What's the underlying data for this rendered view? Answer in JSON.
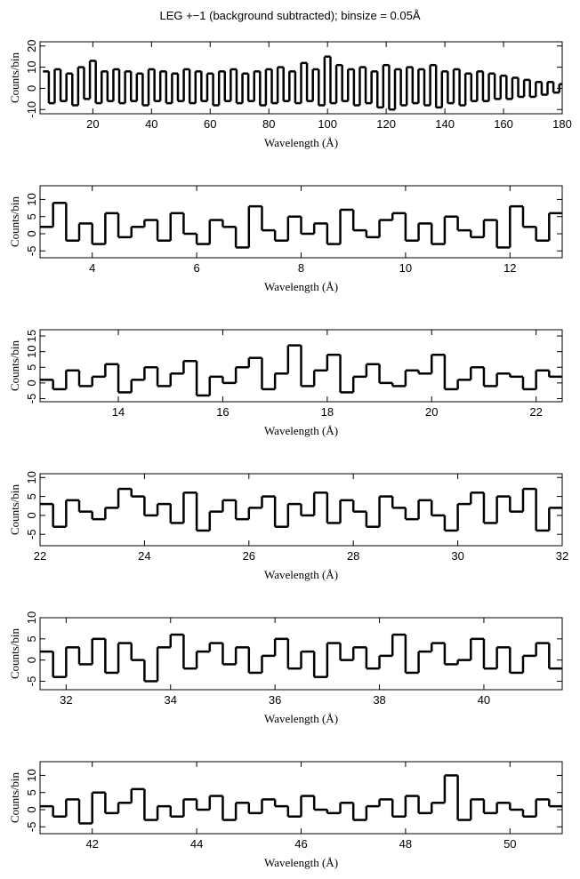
{
  "chart_data": [
    {
      "type": "step",
      "title": "LEG +−1 (background subtracted); binsize = 0.05Å",
      "xlabel": "Wavelength (Å)",
      "ylabel": "Counts/bin",
      "color": "#000000",
      "x": [
        3,
        5,
        7,
        9,
        11,
        13,
        15,
        17,
        19,
        21,
        23,
        25,
        27,
        29,
        31,
        33,
        35,
        37,
        39,
        41,
        43,
        45,
        47,
        49,
        51,
        53,
        55,
        57,
        59,
        61,
        63,
        65,
        67,
        69,
        71,
        73,
        75,
        77,
        79,
        81,
        83,
        85,
        87,
        89,
        91,
        93,
        95,
        97,
        99,
        101,
        103,
        105,
        107,
        109,
        111,
        113,
        115,
        117,
        119,
        121,
        123,
        125,
        127,
        129,
        131,
        133,
        135,
        137,
        139,
        141,
        143,
        145,
        147,
        149,
        151,
        153,
        155,
        157,
        159,
        161,
        163,
        165,
        167,
        169,
        171,
        173,
        175,
        177,
        179
      ],
      "values": [
        8,
        -7,
        9,
        -6,
        7,
        -8,
        10,
        -5,
        13,
        -7,
        8,
        -6,
        9,
        -7,
        8,
        -6,
        7,
        -8,
        9,
        -6,
        8,
        -7,
        7,
        -6,
        9,
        -7,
        8,
        -6,
        7,
        -8,
        8,
        -6,
        9,
        -7,
        7,
        -6,
        8,
        -8,
        9,
        -7,
        10,
        -6,
        8,
        -7,
        12,
        -6,
        9,
        -8,
        15,
        -7,
        11,
        -6,
        9,
        -8,
        10,
        -7,
        8,
        -9,
        11,
        -10,
        9,
        -8,
        10,
        -7,
        9,
        -8,
        11,
        -9,
        8,
        -7,
        9,
        -8,
        7,
        -6,
        8,
        -6,
        7,
        -5,
        6,
        -5,
        5,
        -4,
        4,
        -4,
        3,
        -3,
        3,
        -2,
        2
      ],
      "xlim": [
        2,
        180
      ],
      "xticks": [
        20,
        40,
        60,
        80,
        100,
        120,
        140,
        160,
        180
      ],
      "ylim": [
        -12,
        22
      ],
      "yticks": [
        -10,
        0,
        10,
        20
      ]
    },
    {
      "type": "step",
      "xlabel": "Wavelength (Å)",
      "ylabel": "Counts/bin",
      "color": "#000000",
      "x": [
        3,
        3.25,
        3.5,
        3.75,
        4,
        4.25,
        4.5,
        4.75,
        5,
        5.25,
        5.5,
        5.75,
        6,
        6.25,
        6.5,
        6.75,
        7,
        7.25,
        7.5,
        7.75,
        8,
        8.25,
        8.5,
        8.75,
        9,
        9.25,
        9.5,
        9.75,
        10,
        10.25,
        10.5,
        10.75,
        11,
        11.25,
        11.5,
        11.75,
        12,
        12.25,
        12.5,
        12.75
      ],
      "values": [
        2,
        9,
        -2,
        3,
        -3,
        6,
        -1,
        2,
        4,
        -2,
        6,
        0,
        -3,
        4,
        2,
        -4,
        8,
        1,
        -2,
        5,
        0,
        3,
        -3,
        7,
        1,
        -1,
        4,
        6,
        -2,
        3,
        -3,
        5,
        1,
        -1,
        4,
        -4,
        8,
        2,
        -2,
        6
      ],
      "xlim": [
        3,
        13
      ],
      "xticks": [
        4,
        6,
        8,
        10,
        12
      ],
      "ylim": [
        -7,
        14
      ],
      "yticks": [
        -5,
        0,
        5,
        10
      ]
    },
    {
      "type": "step",
      "xlabel": "Wavelength (Å)",
      "ylabel": "Counts/bin",
      "color": "#000000",
      "x": [
        12.5,
        12.75,
        13,
        13.25,
        13.5,
        13.75,
        14,
        14.25,
        14.5,
        14.75,
        15,
        15.25,
        15.5,
        15.75,
        16,
        16.25,
        16.5,
        16.75,
        17,
        17.25,
        17.5,
        17.75,
        18,
        18.25,
        18.5,
        18.75,
        19,
        19.25,
        19.5,
        19.75,
        20,
        20.25,
        20.5,
        20.75,
        21,
        21.25,
        21.5,
        21.75,
        22,
        22.25
      ],
      "values": [
        1,
        -2,
        4,
        -1,
        2,
        6,
        -3,
        1,
        5,
        -1,
        3,
        7,
        -4,
        2,
        0,
        5,
        8,
        -2,
        3,
        12,
        -1,
        4,
        9,
        -3,
        2,
        6,
        0,
        -1,
        4,
        3,
        9,
        -2,
        1,
        5,
        -1,
        3,
        2,
        -2,
        4,
        2
      ],
      "xlim": [
        12.5,
        22.5
      ],
      "xticks": [
        14,
        16,
        18,
        20,
        22
      ],
      "ylim": [
        -6,
        17
      ],
      "yticks": [
        -5,
        0,
        5,
        10,
        15
      ]
    },
    {
      "type": "step",
      "xlabel": "Wavelength (Å)",
      "ylabel": "Counts/bin",
      "color": "#000000",
      "x": [
        22,
        22.25,
        22.5,
        22.75,
        23,
        23.25,
        23.5,
        23.75,
        24,
        24.25,
        24.5,
        24.75,
        25,
        25.25,
        25.5,
        25.75,
        26,
        26.25,
        26.5,
        26.75,
        27,
        27.25,
        27.5,
        27.75,
        28,
        28.25,
        28.5,
        28.75,
        29,
        29.25,
        29.5,
        29.75,
        30,
        30.25,
        30.5,
        30.75,
        31,
        31.25,
        31.5,
        31.75
      ],
      "values": [
        3,
        -3,
        4,
        1,
        -1,
        2,
        7,
        5,
        0,
        3,
        -2,
        6,
        -4,
        1,
        4,
        -1,
        2,
        5,
        -3,
        3,
        0,
        6,
        -2,
        4,
        1,
        -3,
        5,
        2,
        -1,
        4,
        0,
        -4,
        3,
        6,
        -2,
        5,
        1,
        7,
        -4,
        2
      ],
      "xlim": [
        22,
        32
      ],
      "xticks": [
        22,
        24,
        26,
        28,
        30,
        32
      ],
      "ylim": [
        -8,
        11
      ],
      "yticks": [
        -5,
        0,
        5,
        10
      ]
    },
    {
      "type": "step",
      "xlabel": "Wavelength (Å)",
      "ylabel": "Counts/bin",
      "color": "#000000",
      "x": [
        31.5,
        31.75,
        32,
        32.25,
        32.5,
        32.75,
        33,
        33.25,
        33.5,
        33.75,
        34,
        34.25,
        34.5,
        34.75,
        35,
        35.25,
        35.5,
        35.75,
        36,
        36.25,
        36.5,
        36.75,
        37,
        37.25,
        37.5,
        37.75,
        38,
        38.25,
        38.5,
        38.75,
        39,
        39.25,
        39.5,
        39.75,
        40,
        40.25,
        40.5,
        40.75,
        41,
        41.25
      ],
      "values": [
        2,
        -4,
        3,
        -1,
        5,
        -3,
        4,
        0,
        -5,
        3,
        6,
        -2,
        2,
        4,
        -1,
        3,
        -3,
        1,
        5,
        -2,
        2,
        -4,
        4,
        0,
        3,
        -2,
        1,
        6,
        -3,
        2,
        4,
        -1,
        0,
        5,
        -2,
        3,
        -3,
        1,
        4,
        -2
      ],
      "xlim": [
        31.5,
        41.5
      ],
      "xticks": [
        32,
        34,
        36,
        38,
        40
      ],
      "ylim": [
        -7,
        10
      ],
      "yticks": [
        -5,
        0,
        5,
        10
      ]
    },
    {
      "type": "step",
      "xlabel": "Wavelength (Å)",
      "ylabel": "Counts/bin",
      "color": "#000000",
      "x": [
        41,
        41.25,
        41.5,
        41.75,
        42,
        42.25,
        42.5,
        42.75,
        43,
        43.25,
        43.5,
        43.75,
        44,
        44.25,
        44.5,
        44.75,
        45,
        45.25,
        45.5,
        45.75,
        46,
        46.25,
        46.5,
        46.75,
        47,
        47.25,
        47.5,
        47.75,
        48,
        48.25,
        48.5,
        48.75,
        49,
        49.25,
        49.5,
        49.75,
        50,
        50.25,
        50.5,
        50.75
      ],
      "values": [
        1,
        -2,
        3,
        -4,
        5,
        -1,
        2,
        6,
        -3,
        1,
        -2,
        3,
        0,
        4,
        -3,
        2,
        -1,
        3,
        1,
        -2,
        4,
        0,
        -1,
        2,
        -3,
        1,
        3,
        -2,
        4,
        -1,
        2,
        10,
        -3,
        3,
        -1,
        2,
        0,
        -2,
        3,
        1
      ],
      "xlim": [
        41,
        51
      ],
      "xticks": [
        42,
        44,
        46,
        48,
        50
      ],
      "ylim": [
        -7,
        14
      ],
      "yticks": [
        -5,
        0,
        5,
        10
      ]
    }
  ]
}
